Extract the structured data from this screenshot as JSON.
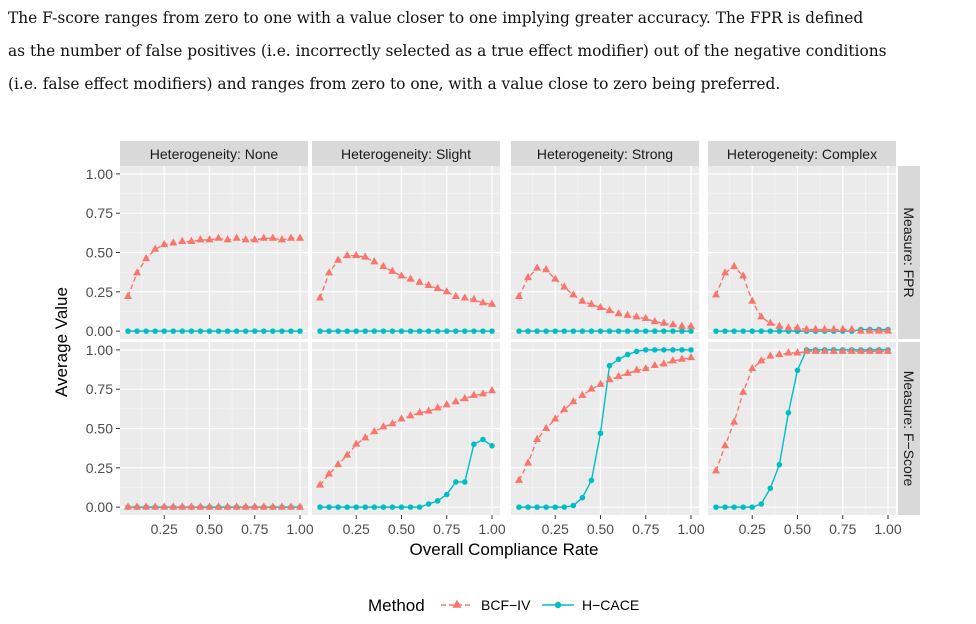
{
  "paragraph": {
    "lines": [
      "The F-score ranges from zero to one with a value closer to one implying greater accuracy. The FPR is defined",
      "as the number of false positives (i.e. incorrectly selected as a true effect modifier) out of the negative conditions",
      "(i.e. false effect modifiers) and ranges from zero to one, with a value close to zero being preferred."
    ]
  },
  "chart_data": {
    "type": "line",
    "facet_columns": [
      "Heterogeneity: None",
      "Heterogeneity: Slight",
      "Heterogeneity: Strong",
      "Heterogeneity: Complex"
    ],
    "facet_rows": [
      "Measure: FPR",
      "Measure: F−Score"
    ],
    "xlabel": "Overall Compliance Rate",
    "ylabel": "Average Value",
    "xlim": [
      0.05,
      1.0
    ],
    "ylim": [
      0,
      1
    ],
    "x_ticks": [
      0.25,
      0.5,
      0.75,
      1.0
    ],
    "x_tick_labels": [
      "0.25",
      "0.50",
      "0.75",
      "1.00"
    ],
    "y_ticks": [
      0,
      0.25,
      0.5,
      0.75,
      1.0
    ],
    "y_tick_labels": [
      "0.00",
      "0.25",
      "0.50",
      "0.75",
      "1.00"
    ],
    "legend": {
      "title": "Method",
      "position": "bottom",
      "entries": [
        {
          "name": "BCF−IV",
          "color": "#F8766D",
          "marker": "triangle",
          "line": "dashed"
        },
        {
          "name": "H−CACE",
          "color": "#00BFC4",
          "marker": "circle",
          "line": "solid"
        }
      ]
    },
    "x": [
      0.05,
      0.1,
      0.15,
      0.2,
      0.25,
      0.3,
      0.35,
      0.4,
      0.45,
      0.5,
      0.55,
      0.6,
      0.65,
      0.7,
      0.75,
      0.8,
      0.85,
      0.9,
      0.95,
      1.0
    ],
    "panels": [
      {
        "row": 0,
        "col": 0,
        "BCF_IV": [
          0.22,
          0.37,
          0.46,
          0.52,
          0.55,
          0.56,
          0.57,
          0.57,
          0.58,
          0.58,
          0.59,
          0.58,
          0.59,
          0.58,
          0.58,
          0.59,
          0.59,
          0.58,
          0.59,
          0.59
        ],
        "H_CACE": [
          0,
          0,
          0,
          0,
          0,
          0,
          0,
          0,
          0,
          0,
          0,
          0,
          0,
          0,
          0,
          0,
          0,
          0,
          0,
          0
        ]
      },
      {
        "row": 0,
        "col": 1,
        "BCF_IV": [
          0.21,
          0.37,
          0.45,
          0.48,
          0.48,
          0.47,
          0.44,
          0.41,
          0.38,
          0.35,
          0.33,
          0.31,
          0.29,
          0.27,
          0.25,
          0.22,
          0.21,
          0.2,
          0.18,
          0.17
        ],
        "H_CACE": [
          0,
          0,
          0,
          0,
          0,
          0,
          0,
          0,
          0,
          0,
          0,
          0,
          0,
          0,
          0,
          0,
          0,
          0,
          0,
          0
        ]
      },
      {
        "row": 0,
        "col": 2,
        "BCF_IV": [
          0.22,
          0.34,
          0.4,
          0.39,
          0.33,
          0.28,
          0.23,
          0.19,
          0.17,
          0.15,
          0.13,
          0.11,
          0.1,
          0.09,
          0.08,
          0.06,
          0.05,
          0.04,
          0.03,
          0.03
        ],
        "H_CACE": [
          0,
          0,
          0,
          0,
          0,
          0,
          0,
          0,
          0,
          0,
          0,
          0,
          0,
          0,
          0,
          0,
          0,
          0,
          0,
          0
        ]
      },
      {
        "row": 0,
        "col": 3,
        "BCF_IV": [
          0.23,
          0.37,
          0.41,
          0.35,
          0.19,
          0.09,
          0.05,
          0.03,
          0.02,
          0.02,
          0.01,
          0.01,
          0.01,
          0.01,
          0.01,
          0.01,
          0.0,
          0.0,
          0.0,
          0.0
        ],
        "H_CACE": [
          0,
          0,
          0,
          0,
          0,
          0,
          0,
          0,
          0,
          0,
          0,
          0,
          0,
          0,
          0,
          0,
          0.01,
          0.01,
          0.01,
          0.01
        ]
      },
      {
        "row": 1,
        "col": 0,
        "BCF_IV": [
          0,
          0,
          0,
          0,
          0,
          0,
          0,
          0,
          0,
          0,
          0,
          0,
          0,
          0,
          0,
          0,
          0,
          0,
          0,
          0
        ],
        "H_CACE": [
          0,
          0,
          0,
          0,
          0,
          0,
          0,
          0,
          0,
          0,
          0,
          0,
          0,
          0,
          0,
          0,
          0,
          0,
          0,
          0
        ]
      },
      {
        "row": 1,
        "col": 1,
        "BCF_IV": [
          0.14,
          0.21,
          0.27,
          0.33,
          0.4,
          0.44,
          0.48,
          0.51,
          0.53,
          0.56,
          0.58,
          0.6,
          0.61,
          0.63,
          0.65,
          0.67,
          0.69,
          0.71,
          0.72,
          0.74
        ],
        "H_CACE": [
          0,
          0,
          0,
          0,
          0,
          0,
          0,
          0,
          0,
          0,
          0,
          0,
          0.02,
          0.04,
          0.08,
          0.16,
          0.16,
          0.4,
          0.43,
          0.39
        ]
      },
      {
        "row": 1,
        "col": 2,
        "BCF_IV": [
          0.17,
          0.28,
          0.43,
          0.5,
          0.56,
          0.62,
          0.67,
          0.71,
          0.75,
          0.78,
          0.81,
          0.83,
          0.85,
          0.87,
          0.88,
          0.9,
          0.91,
          0.93,
          0.94,
          0.95
        ],
        "H_CACE": [
          0,
          0,
          0,
          0,
          0,
          0,
          0.01,
          0.06,
          0.17,
          0.47,
          0.9,
          0.94,
          0.97,
          0.99,
          1.0,
          1.0,
          1.0,
          1.0,
          1.0,
          1.0
        ]
      },
      {
        "row": 1,
        "col": 3,
        "BCF_IV": [
          0.23,
          0.39,
          0.54,
          0.73,
          0.88,
          0.93,
          0.96,
          0.97,
          0.98,
          0.98,
          0.99,
          0.99,
          0.99,
          0.99,
          0.99,
          0.99,
          0.99,
          0.99,
          0.99,
          0.99
        ],
        "H_CACE": [
          0,
          0,
          0,
          0,
          0,
          0.02,
          0.12,
          0.27,
          0.6,
          0.87,
          1.0,
          1.0,
          1.0,
          1.0,
          1.0,
          1.0,
          1.0,
          1.0,
          1.0,
          1.0
        ]
      }
    ]
  }
}
